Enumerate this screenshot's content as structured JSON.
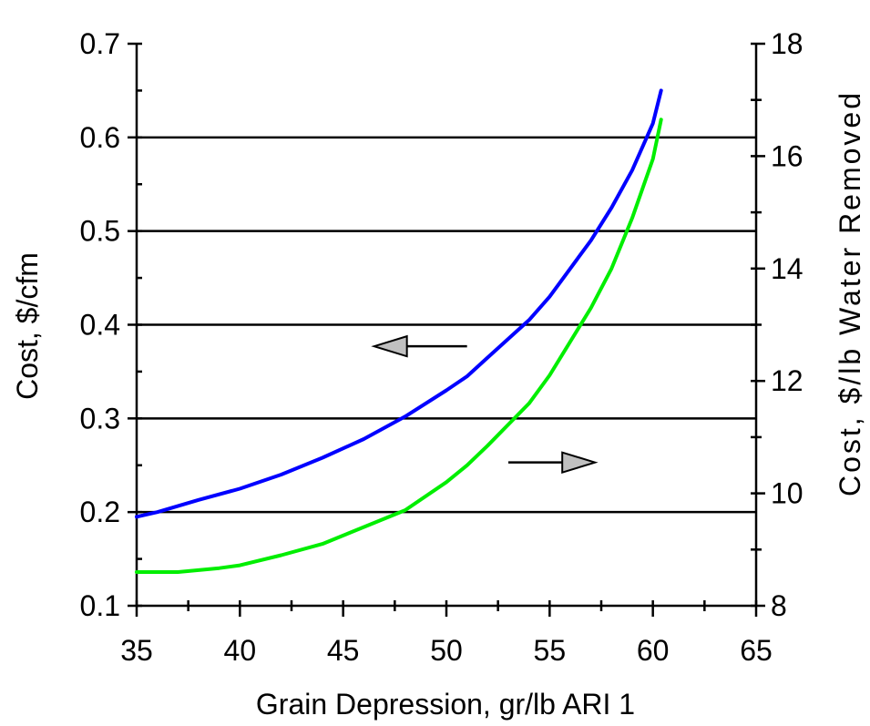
{
  "chart_data": {
    "type": "line",
    "title": "",
    "xlabel": "Grain Depression, gr/lb ARI 1",
    "ylabel": "Cost, $/cfm",
    "y2label": "Cost, $/lb Water Removed",
    "xlim": [
      35,
      65
    ],
    "ylim": [
      0.1,
      0.7
    ],
    "y2lim": [
      8,
      18
    ],
    "x_ticks": [
      "35",
      "40",
      "45",
      "50",
      "55",
      "60",
      "65"
    ],
    "y_ticks": [
      "0.1",
      "0.2",
      "0.3",
      "0.4",
      "0.5",
      "0.6",
      "0.7"
    ],
    "y2_ticks": [
      "8",
      "10",
      "12",
      "14",
      "16",
      "18"
    ],
    "grid": "horizontal",
    "series": [
      {
        "axis": "left",
        "color": "#0000ff",
        "x": [
          35,
          36,
          38,
          40,
          42,
          44,
          46,
          48,
          50,
          51,
          52,
          54,
          55,
          56,
          57,
          58,
          59,
          60,
          60.4
        ],
        "y": [
          0.195,
          0.2,
          0.213,
          0.225,
          0.24,
          0.258,
          0.278,
          0.302,
          0.33,
          0.345,
          0.365,
          0.405,
          0.43,
          0.46,
          0.49,
          0.525,
          0.565,
          0.615,
          0.65
        ]
      },
      {
        "axis": "right",
        "color": "#00ee00",
        "x": [
          35,
          37,
          39,
          40,
          42,
          44,
          46,
          48,
          50,
          51,
          52,
          54,
          55,
          56,
          57,
          58,
          59,
          60,
          60.4
        ],
        "y": [
          8.6,
          8.6,
          8.67,
          8.72,
          8.9,
          9.1,
          9.4,
          9.7,
          10.2,
          10.5,
          10.85,
          11.6,
          12.1,
          12.7,
          13.3,
          14.0,
          14.9,
          15.95,
          16.65
        ]
      }
    ],
    "annotations": [
      {
        "type": "arrow",
        "direction": "left",
        "points_to": "left axis",
        "x": [
          51,
          46.5
        ],
        "y": 0.377
      },
      {
        "type": "arrow",
        "direction": "right",
        "points_to": "right axis",
        "x": [
          53,
          57.2
        ],
        "y": 0.253
      }
    ]
  }
}
